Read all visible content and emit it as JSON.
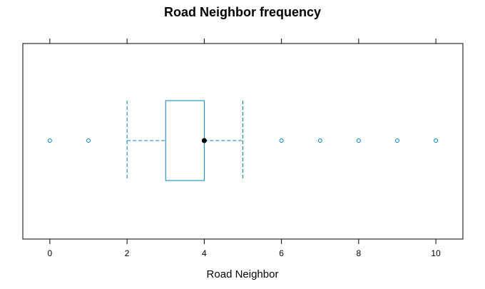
{
  "chart_data": {
    "type": "boxplot",
    "title": "Road Neighbor frequency",
    "xlabel": "Road Neighbor",
    "xlim": [
      -0.7,
      10.7
    ],
    "ticks": [
      0,
      2,
      4,
      6,
      8,
      10
    ],
    "tick_labels": [
      "0",
      "2",
      "4",
      "6",
      "8",
      "10"
    ],
    "ticks_mirrored_top": true,
    "grid": false,
    "box": {
      "whisker_low": 2,
      "q1": 3,
      "median": 4,
      "q3": 4,
      "whisker_high": 5
    },
    "outliers": [
      0,
      1,
      6,
      7,
      8,
      9,
      10
    ],
    "colors": {
      "box": "#0080c0",
      "median_dot": "#000000",
      "frame": "#000000"
    }
  }
}
